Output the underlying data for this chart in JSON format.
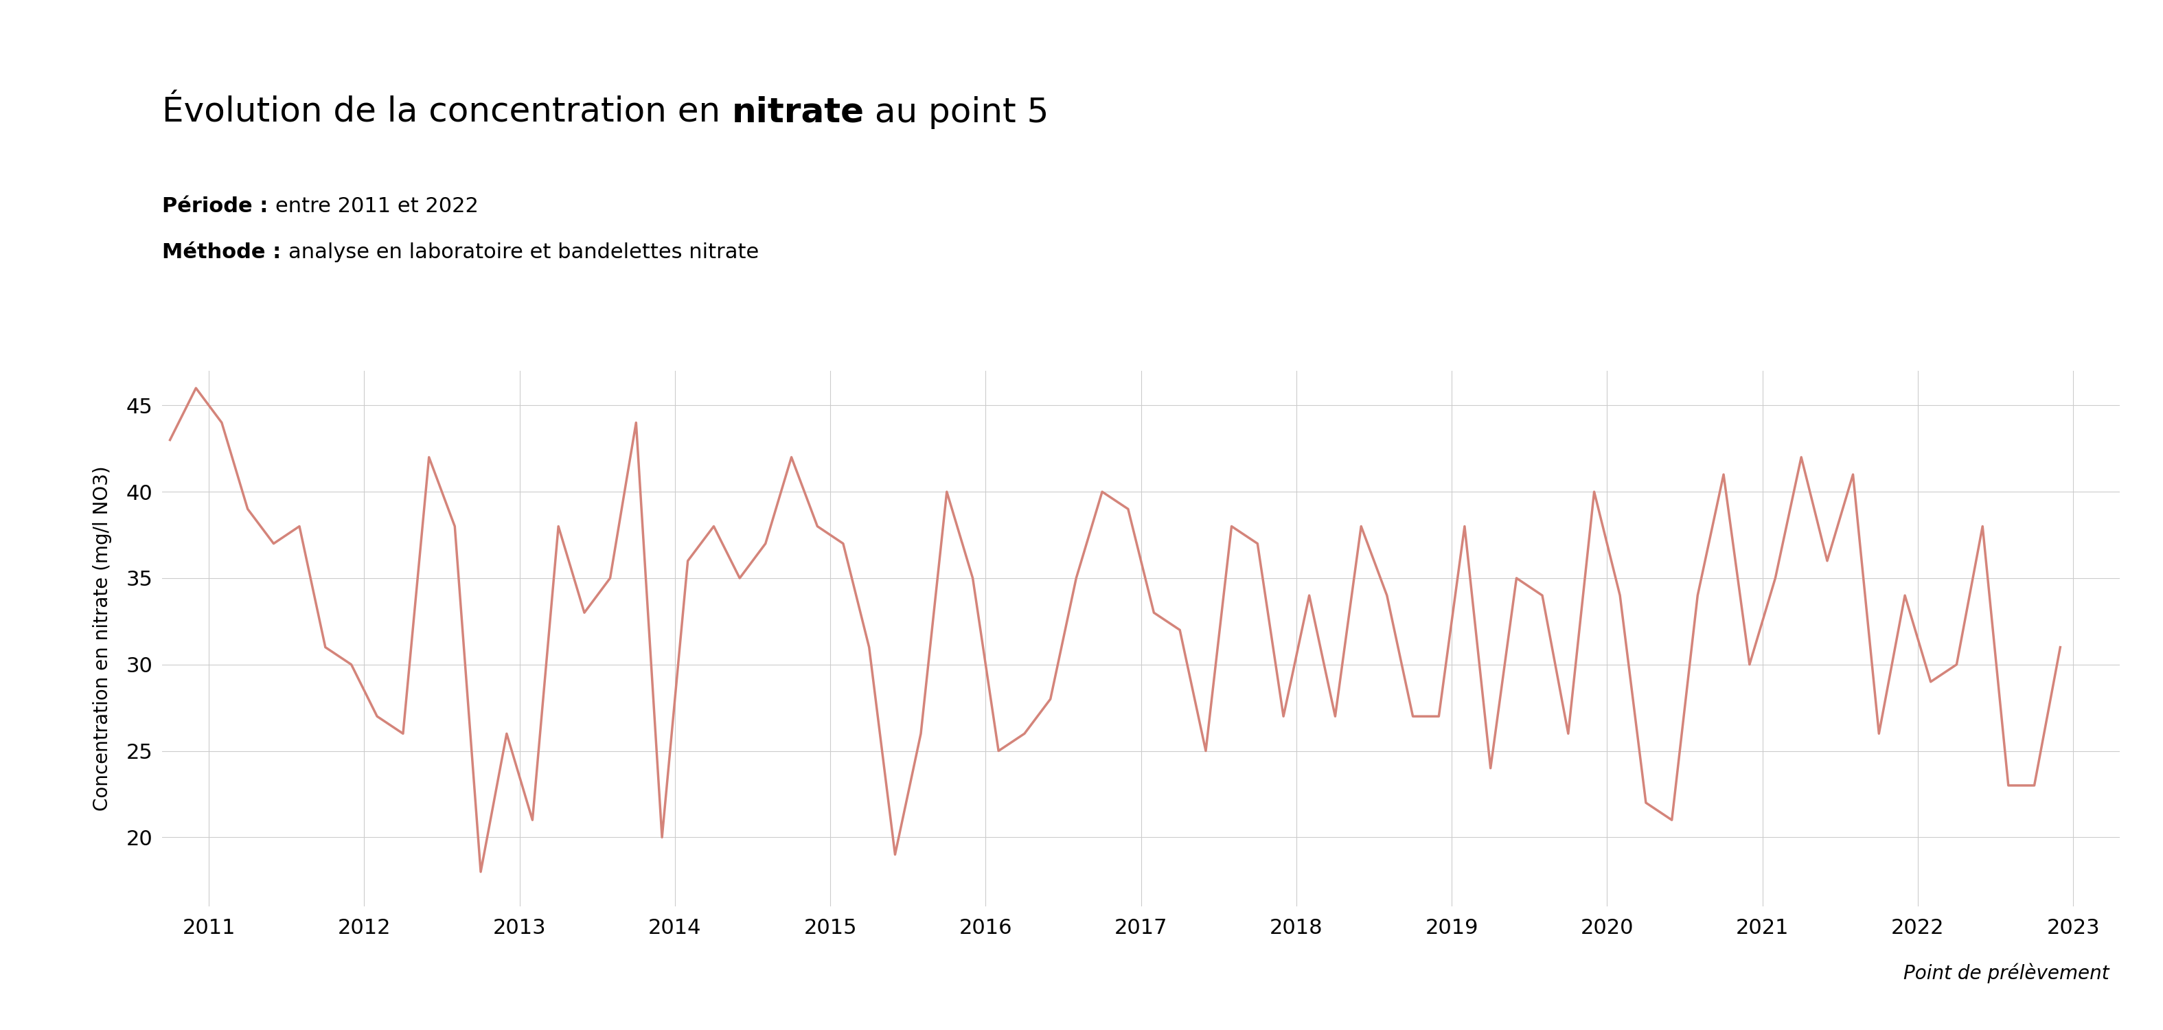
{
  "title_normal": "Évolution de la concentration en ",
  "title_bold": "nitrate",
  "title_end": " au point 5",
  "periode_label": "Période : ",
  "periode_value": "entre 2011 et 2022",
  "methode_label": "Méthode : ",
  "methode_value": "analyse en laboratoire et bandelettes nitrate",
  "ylabel": "Concentration en nitrate (mg/l NO3)",
  "xlabel_note": "Point de prélèvement",
  "line_color": "#d4847a",
  "background_color": "#ffffff",
  "ylim": [
    16,
    47
  ],
  "yticks": [
    20,
    25,
    30,
    35,
    40,
    45
  ],
  "x_years": [
    2011,
    2012,
    2013,
    2014,
    2015,
    2016,
    2017,
    2018,
    2019,
    2020,
    2021,
    2022,
    2023
  ],
  "x_vals": [
    2010.75,
    2010.917,
    2011.083,
    2011.25,
    2011.417,
    2011.583,
    2011.75,
    2011.917,
    2012.083,
    2012.25,
    2012.417,
    2012.583,
    2012.75,
    2012.917,
    2013.083,
    2013.25,
    2013.417,
    2013.583,
    2013.75,
    2013.917,
    2014.083,
    2014.25,
    2014.417,
    2014.583,
    2014.75,
    2014.917,
    2015.083,
    2015.25,
    2015.417,
    2015.583,
    2015.75,
    2015.917,
    2016.083,
    2016.25,
    2016.417,
    2016.583,
    2016.75,
    2016.917,
    2017.083,
    2017.25,
    2017.417,
    2017.583,
    2017.75,
    2017.917,
    2018.083,
    2018.25,
    2018.417,
    2018.583,
    2018.75,
    2018.917,
    2019.083,
    2019.25,
    2019.417,
    2019.583,
    2019.75,
    2019.917,
    2020.083,
    2020.25,
    2020.417,
    2020.583,
    2020.75,
    2020.917,
    2021.083,
    2021.25,
    2021.417,
    2021.583,
    2021.75,
    2021.917,
    2022.083,
    2022.25,
    2022.417,
    2022.583,
    2022.75,
    2022.917
  ],
  "values": [
    43,
    46,
    44,
    39,
    37,
    38,
    31,
    30,
    27,
    26,
    42,
    38,
    18,
    26,
    21,
    38,
    33,
    35,
    44,
    20,
    36,
    38,
    35,
    37,
    42,
    38,
    37,
    31,
    19,
    26,
    40,
    35,
    25,
    26,
    28,
    35,
    40,
    39,
    33,
    32,
    25,
    38,
    37,
    27,
    34,
    27,
    38,
    34,
    27,
    27,
    38,
    24,
    35,
    34,
    26,
    40,
    34,
    22,
    21,
    34,
    41,
    30,
    35,
    42,
    36,
    41,
    26,
    34,
    29,
    30,
    38,
    23,
    23,
    31
  ]
}
